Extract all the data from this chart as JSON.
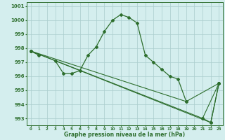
{
  "x": [
    0,
    1,
    2,
    3,
    4,
    5,
    6,
    7,
    8,
    9,
    10,
    11,
    12,
    13,
    14,
    15,
    16,
    17,
    18,
    19,
    20,
    21,
    22,
    23
  ],
  "line1": [
    997.8,
    997.5,
    null,
    997.1,
    996.2,
    996.2,
    996.4,
    997.5,
    998.1,
    999.2,
    1000.0,
    1000.4,
    1000.2,
    999.8,
    997.5,
    997.0,
    996.5,
    996.0,
    995.8,
    994.2,
    null,
    993.0,
    992.7,
    995.5
  ],
  "line2_x": [
    0,
    19,
    23
  ],
  "line2_y": [
    997.8,
    994.2,
    995.5
  ],
  "line3_x": [
    0,
    21,
    23
  ],
  "line3_y": [
    997.8,
    993.0,
    995.5
  ],
  "line4_x": [
    0,
    22,
    23
  ],
  "line4_y": [
    997.8,
    992.7,
    995.5
  ],
  "bg_color": "#d4eeee",
  "line_color": "#2d6e2d",
  "grid_color": "#aacccc",
  "xlabel": "Graphe pression niveau de la mer (hPa)",
  "ylim": [
    992.5,
    1001.3
  ],
  "xlim": [
    -0.5,
    23.5
  ],
  "yticks": [
    993,
    994,
    995,
    996,
    997,
    998,
    999,
    1000,
    1001
  ],
  "xticks": [
    0,
    1,
    2,
    3,
    4,
    5,
    6,
    7,
    8,
    9,
    10,
    11,
    12,
    13,
    14,
    15,
    16,
    17,
    18,
    19,
    20,
    21,
    22,
    23
  ],
  "xtick_labels": [
    "0",
    "1",
    "2",
    "3",
    "4",
    "5",
    "6",
    "7",
    "8",
    "9",
    "10",
    "11",
    "12",
    "13",
    "14",
    "15",
    "16",
    "17",
    "18",
    "19",
    "20",
    "21",
    "22",
    "23"
  ]
}
